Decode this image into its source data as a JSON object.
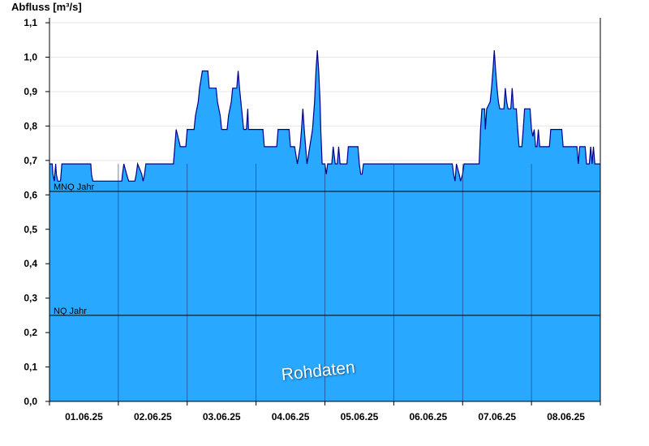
{
  "chart_data": {
    "type": "area",
    "ylabel": "Abfluss [m³/s]",
    "ylim": [
      0,
      1.15
    ],
    "yticks": [
      "0,0",
      "0,1",
      "0,2",
      "0,3",
      "0,4",
      "0,5",
      "0,6",
      "0,7",
      "0,8",
      "0,9",
      "1,0",
      "1,1"
    ],
    "xlim": [
      0,
      8
    ],
    "xticks": [
      {
        "x": 0.5,
        "label": "01.06.25"
      },
      {
        "x": 1.5,
        "label": "02.06.25"
      },
      {
        "x": 2.5,
        "label": "03.06.25"
      },
      {
        "x": 3.5,
        "label": "04.06.25"
      },
      {
        "x": 4.5,
        "label": "05.06.25"
      },
      {
        "x": 5.5,
        "label": "06.06.25"
      },
      {
        "x": 6.5,
        "label": "07.06.25"
      },
      {
        "x": 7.5,
        "label": "08.06.25"
      }
    ],
    "day_separators": [
      1,
      2,
      3,
      4,
      5,
      6,
      7
    ],
    "reference_lines": [
      {
        "label": "MNQ Jahr",
        "value": 0.61
      },
      {
        "label": "NQ Jahr",
        "value": 0.25
      }
    ],
    "watermark": "Rohdaten",
    "fill_color": "#29a8ff",
    "line_color": "#00008b",
    "series": [
      {
        "points": [
          [
            0.0,
            0.69
          ],
          [
            0.04,
            0.69
          ],
          [
            0.05,
            0.66
          ],
          [
            0.07,
            0.64
          ],
          [
            0.09,
            0.69
          ],
          [
            0.1,
            0.66
          ],
          [
            0.12,
            0.64
          ],
          [
            0.16,
            0.64
          ],
          [
            0.18,
            0.69
          ],
          [
            0.6,
            0.69
          ],
          [
            0.61,
            0.66
          ],
          [
            0.63,
            0.64
          ],
          [
            1.05,
            0.64
          ],
          [
            1.06,
            0.66
          ],
          [
            1.08,
            0.69
          ],
          [
            1.12,
            0.66
          ],
          [
            1.15,
            0.64
          ],
          [
            1.24,
            0.64
          ],
          [
            1.26,
            0.66
          ],
          [
            1.28,
            0.69
          ],
          [
            1.34,
            0.66
          ],
          [
            1.36,
            0.64
          ],
          [
            1.38,
            0.66
          ],
          [
            1.4,
            0.69
          ],
          [
            1.8,
            0.69
          ],
          [
            1.82,
            0.74
          ],
          [
            1.84,
            0.79
          ],
          [
            1.9,
            0.74
          ],
          [
            1.98,
            0.74
          ],
          [
            2.0,
            0.79
          ],
          [
            2.1,
            0.79
          ],
          [
            2.12,
            0.83
          ],
          [
            2.16,
            0.87
          ],
          [
            2.18,
            0.91
          ],
          [
            2.22,
            0.96
          ],
          [
            2.3,
            0.96
          ],
          [
            2.32,
            0.91
          ],
          [
            2.42,
            0.91
          ],
          [
            2.44,
            0.87
          ],
          [
            2.48,
            0.83
          ],
          [
            2.5,
            0.79
          ],
          [
            2.58,
            0.79
          ],
          [
            2.6,
            0.83
          ],
          [
            2.64,
            0.87
          ],
          [
            2.66,
            0.91
          ],
          [
            2.72,
            0.91
          ],
          [
            2.74,
            0.96
          ],
          [
            2.76,
            0.91
          ],
          [
            2.78,
            0.87
          ],
          [
            2.8,
            0.83
          ],
          [
            2.82,
            0.79
          ],
          [
            2.86,
            0.79
          ],
          [
            2.88,
            0.85
          ],
          [
            2.89,
            0.79
          ],
          [
            3.1,
            0.79
          ],
          [
            3.12,
            0.74
          ],
          [
            3.3,
            0.74
          ],
          [
            3.32,
            0.79
          ],
          [
            3.48,
            0.79
          ],
          [
            3.5,
            0.74
          ],
          [
            3.56,
            0.74
          ],
          [
            3.6,
            0.69
          ],
          [
            3.64,
            0.74
          ],
          [
            3.66,
            0.79
          ],
          [
            3.68,
            0.85
          ],
          [
            3.7,
            0.79
          ],
          [
            3.72,
            0.74
          ],
          [
            3.74,
            0.69
          ],
          [
            3.78,
            0.74
          ],
          [
            3.82,
            0.79
          ],
          [
            3.85,
            0.87
          ],
          [
            3.87,
            0.96
          ],
          [
            3.89,
            1.02
          ],
          [
            3.91,
            0.96
          ],
          [
            3.93,
            0.87
          ],
          [
            3.94,
            0.79
          ],
          [
            3.96,
            0.69
          ],
          [
            4.0,
            0.69
          ],
          [
            4.02,
            0.66
          ],
          [
            4.04,
            0.69
          ],
          [
            4.1,
            0.69
          ],
          [
            4.12,
            0.74
          ],
          [
            4.15,
            0.69
          ],
          [
            4.18,
            0.69
          ],
          [
            4.2,
            0.74
          ],
          [
            4.22,
            0.69
          ],
          [
            4.32,
            0.69
          ],
          [
            4.34,
            0.74
          ],
          [
            4.48,
            0.74
          ],
          [
            4.5,
            0.69
          ],
          [
            4.52,
            0.66
          ],
          [
            4.54,
            0.66
          ],
          [
            4.56,
            0.69
          ],
          [
            5.85,
            0.69
          ],
          [
            5.87,
            0.66
          ],
          [
            5.89,
            0.64
          ],
          [
            5.91,
            0.69
          ],
          [
            5.95,
            0.66
          ],
          [
            5.97,
            0.64
          ],
          [
            6.0,
            0.66
          ],
          [
            6.02,
            0.69
          ],
          [
            6.24,
            0.69
          ],
          [
            6.26,
            0.79
          ],
          [
            6.28,
            0.85
          ],
          [
            6.32,
            0.85
          ],
          [
            6.33,
            0.79
          ],
          [
            6.35,
            0.85
          ],
          [
            6.4,
            0.87
          ],
          [
            6.42,
            0.91
          ],
          [
            6.44,
            0.96
          ],
          [
            6.46,
            1.02
          ],
          [
            6.48,
            0.96
          ],
          [
            6.5,
            0.91
          ],
          [
            6.52,
            0.87
          ],
          [
            6.54,
            0.85
          ],
          [
            6.6,
            0.85
          ],
          [
            6.62,
            0.91
          ],
          [
            6.64,
            0.87
          ],
          [
            6.66,
            0.85
          ],
          [
            6.7,
            0.85
          ],
          [
            6.72,
            0.91
          ],
          [
            6.74,
            0.85
          ],
          [
            6.78,
            0.85
          ],
          [
            6.8,
            0.79
          ],
          [
            6.82,
            0.74
          ],
          [
            6.86,
            0.74
          ],
          [
            6.88,
            0.79
          ],
          [
            6.9,
            0.85
          ],
          [
            6.98,
            0.85
          ],
          [
            7.0,
            0.79
          ],
          [
            7.02,
            0.77
          ],
          [
            7.04,
            0.79
          ],
          [
            7.06,
            0.74
          ],
          [
            7.08,
            0.74
          ],
          [
            7.1,
            0.79
          ],
          [
            7.12,
            0.74
          ],
          [
            7.26,
            0.74
          ],
          [
            7.28,
            0.79
          ],
          [
            7.44,
            0.79
          ],
          [
            7.46,
            0.74
          ],
          [
            7.66,
            0.74
          ],
          [
            7.68,
            0.69
          ],
          [
            7.7,
            0.74
          ],
          [
            7.78,
            0.74
          ],
          [
            7.8,
            0.69
          ],
          [
            7.84,
            0.69
          ],
          [
            7.86,
            0.74
          ],
          [
            7.88,
            0.69
          ],
          [
            7.9,
            0.74
          ],
          [
            7.92,
            0.69
          ],
          [
            8.0,
            0.69
          ]
        ]
      }
    ]
  }
}
